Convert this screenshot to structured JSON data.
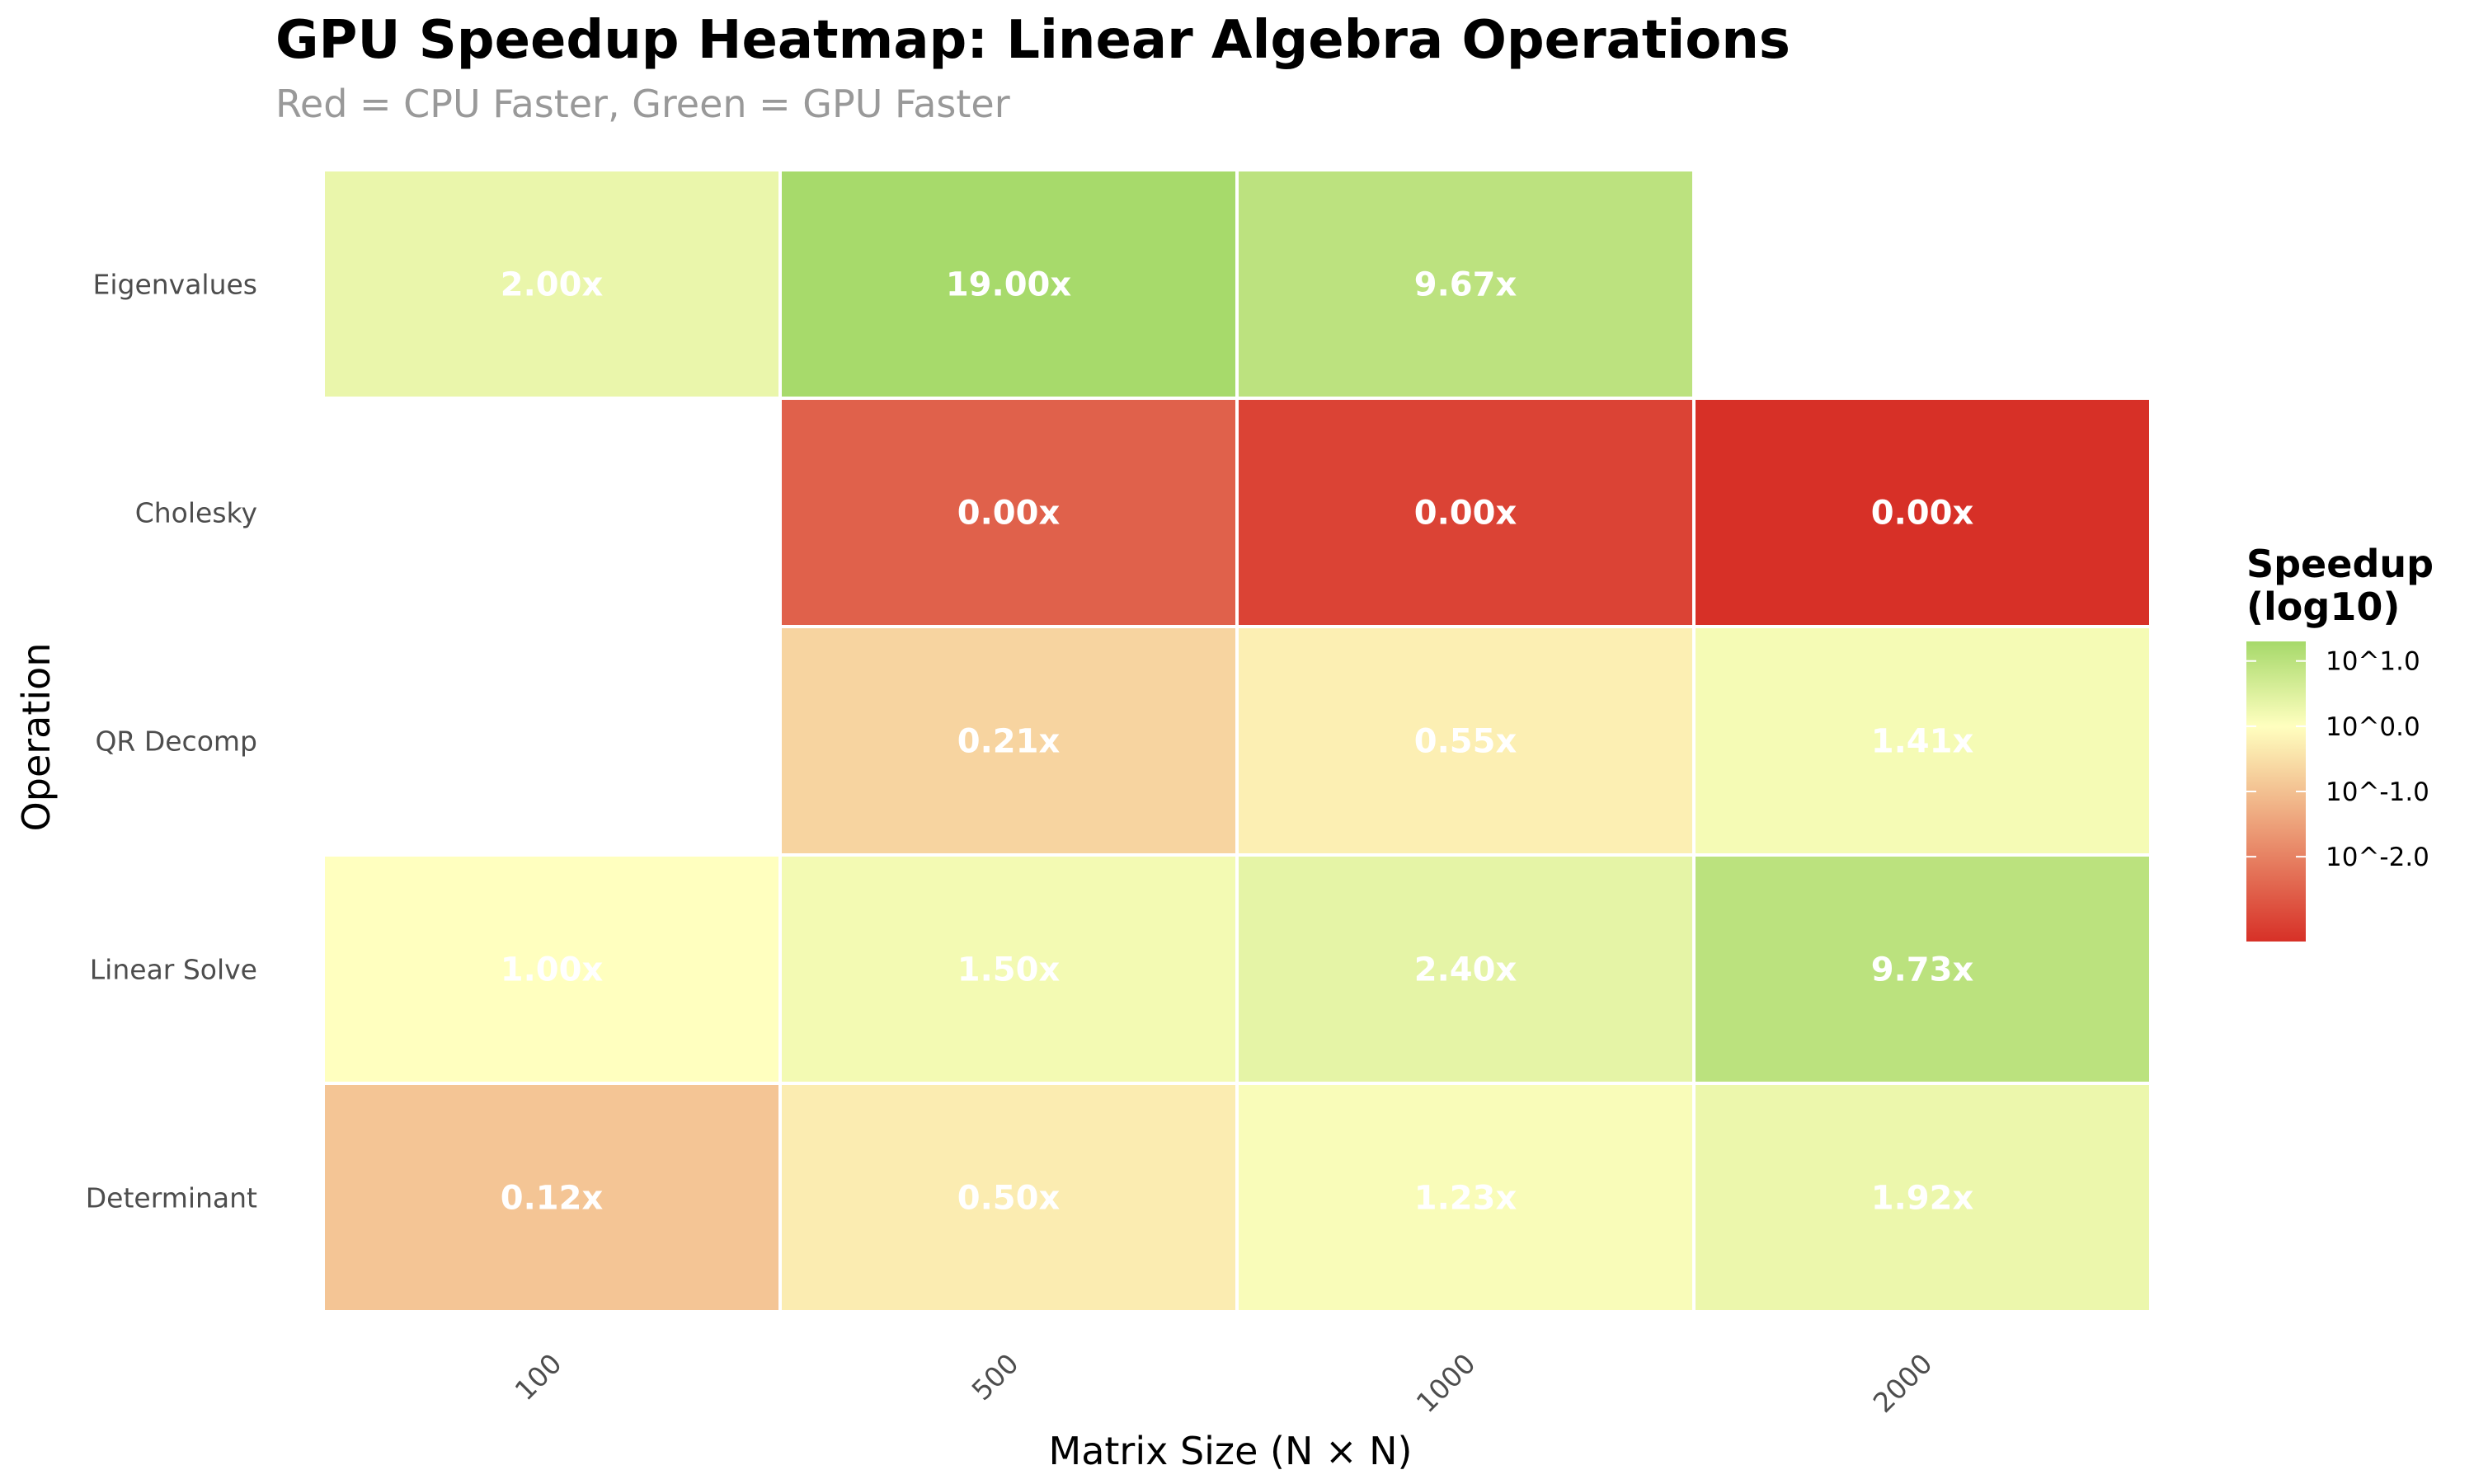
{
  "chart_data": {
    "type": "heatmap",
    "title": "GPU Speedup Heatmap: Linear Algebra Operations",
    "subtitle": "Red = CPU Faster, Green = GPU Faster",
    "xlabel": "Matrix Size (N × N)",
    "ylabel": "Operation",
    "x_categories": [
      "100",
      "500",
      "1000",
      "2000"
    ],
    "y_categories": [
      "Eigenvalues",
      "Cholesky",
      "QR Decomp",
      "Linear Solve",
      "Determinant"
    ],
    "cells": [
      {
        "operation": "Eigenvalues",
        "size": "100",
        "value": 2.0,
        "label": "2.00x"
      },
      {
        "operation": "Eigenvalues",
        "size": "500",
        "value": 19.0,
        "label": "19.00x"
      },
      {
        "operation": "Eigenvalues",
        "size": "1000",
        "value": 9.67,
        "label": "9.67x"
      },
      {
        "operation": "Cholesky",
        "size": "500",
        "value": 0.003,
        "label": "0.00x"
      },
      {
        "operation": "Cholesky",
        "size": "1000",
        "value": 0.001,
        "label": "0.00x"
      },
      {
        "operation": "Cholesky",
        "size": "2000",
        "value": 0.0005,
        "label": "0.00x"
      },
      {
        "operation": "QR Decomp",
        "size": "500",
        "value": 0.21,
        "label": "0.21x"
      },
      {
        "operation": "QR Decomp",
        "size": "1000",
        "value": 0.55,
        "label": "0.55x"
      },
      {
        "operation": "QR Decomp",
        "size": "2000",
        "value": 1.41,
        "label": "1.41x"
      },
      {
        "operation": "Linear Solve",
        "size": "100",
        "value": 1.0,
        "label": "1.00x"
      },
      {
        "operation": "Linear Solve",
        "size": "500",
        "value": 1.5,
        "label": "1.50x"
      },
      {
        "operation": "Linear Solve",
        "size": "1000",
        "value": 2.4,
        "label": "2.40x"
      },
      {
        "operation": "Linear Solve",
        "size": "2000",
        "value": 9.73,
        "label": "9.73x"
      },
      {
        "operation": "Determinant",
        "size": "100",
        "value": 0.12,
        "label": "0.12x"
      },
      {
        "operation": "Determinant",
        "size": "500",
        "value": 0.5,
        "label": "0.50x"
      },
      {
        "operation": "Determinant",
        "size": "1000",
        "value": 1.23,
        "label": "1.23x"
      },
      {
        "operation": "Determinant",
        "size": "2000",
        "value": 1.92,
        "label": "1.92x"
      }
    ],
    "color_scale": {
      "type": "log10 diverging",
      "low_color": "#d73027",
      "mid_color": "#ffffbf",
      "high_color": "#a6d96a",
      "midpoint": 0,
      "limits_log10": [
        -3.3,
        1.3
      ]
    },
    "legend": {
      "title_line1": "Speedup",
      "title_line2": "(log10)",
      "breaks": [
        1.0,
        0.0,
        -1.0,
        -2.0
      ],
      "labels": [
        "10^1.0",
        "10^0.0",
        "10^-1.0",
        "10^-2.0"
      ],
      "placement": "right"
    },
    "grid": false
  }
}
